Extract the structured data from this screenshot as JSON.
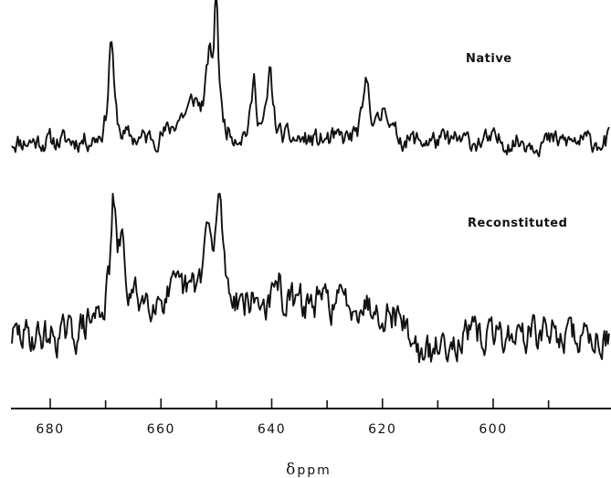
{
  "chart_data": {
    "type": "line",
    "title": "",
    "xlabel_symbol": "δ",
    "xlabel_unit": "ppm",
    "x_reversed": true,
    "xlim": [
      690,
      588
    ],
    "ticks_major": [
      680,
      660,
      640,
      620,
      600
    ],
    "ticks_minor": [
      690,
      670,
      650,
      630,
      610,
      590
    ],
    "tick_labels": [
      "680",
      "660",
      "640",
      "620",
      "600"
    ],
    "grid": false,
    "line_color": "#111111",
    "series": [
      {
        "name": "Native",
        "baseline": 0,
        "peaks": [
          {
            "x": 669.0,
            "h": 1.6,
            "w": 0.55
          },
          {
            "x": 654.0,
            "h": 0.45,
            "w": 1.3
          },
          {
            "x": 651.3,
            "h": 1.0,
            "w": 0.75
          },
          {
            "x": 650.0,
            "h": 2.0,
            "w": 0.45
          },
          {
            "x": 656.5,
            "h": 0.25,
            "w": 2.0
          },
          {
            "x": 643.2,
            "h": 0.85,
            "w": 0.55
          },
          {
            "x": 640.3,
            "h": 1.0,
            "w": 0.6
          },
          {
            "x": 622.8,
            "h": 0.85,
            "w": 0.8
          },
          {
            "x": 619.5,
            "h": 0.55,
            "w": 0.8
          }
        ],
        "noise": 0.12,
        "drift": [
          [
            690,
            0.0
          ],
          [
            588,
            0.0
          ]
        ]
      },
      {
        "name": "Reconstituted",
        "baseline": 0,
        "peaks": [
          {
            "x": 668.6,
            "h": 2.3,
            "w": 0.55
          },
          {
            "x": 667.1,
            "h": 1.4,
            "w": 0.45
          },
          {
            "x": 651.6,
            "h": 1.5,
            "w": 0.8
          },
          {
            "x": 649.4,
            "h": 2.4,
            "w": 0.6
          },
          {
            "x": 638.8,
            "h": 0.55,
            "w": 0.5
          }
        ],
        "noise": 0.3,
        "drift": [
          [
            690,
            0.0
          ],
          [
            676,
            0.0
          ],
          [
            668,
            0.75
          ],
          [
            656,
            0.95
          ],
          [
            640,
            0.7
          ],
          [
            624,
            0.8
          ],
          [
            617,
            0.5
          ],
          [
            612.5,
            -0.55
          ],
          [
            608,
            -0.05
          ],
          [
            588,
            0.1
          ]
        ]
      }
    ]
  }
}
